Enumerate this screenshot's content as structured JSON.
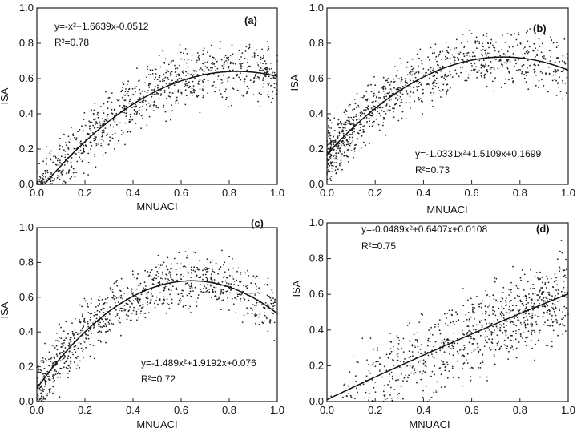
{
  "chart_data": [
    {
      "id": "a",
      "type": "scatter",
      "panel_label": "(a)",
      "xlabel": "MNUACI",
      "ylabel": "ISA",
      "xlim": [
        0,
        1
      ],
      "ylim": [
        0,
        1
      ],
      "xticks": [
        "0.0",
        "0.2",
        "0.4",
        "0.6",
        "0.8",
        "1.0"
      ],
      "yticks": [
        "0.0",
        "0.2",
        "0.4",
        "0.6",
        "0.8",
        "1.0"
      ],
      "equation": "y=-x²+1.6639x-0.0512",
      "r2": "R²=0.78",
      "fit": {
        "a": -1.0,
        "b": 1.6639,
        "c": -0.0512
      },
      "scatter": {
        "count": 900,
        "spread": 0.11,
        "xskew": 1.0,
        "seed": 11
      }
    },
    {
      "id": "b",
      "type": "scatter",
      "panel_label": "(b)",
      "xlabel": "MNUACI",
      "ylabel": "ISA",
      "xlim": [
        0,
        1
      ],
      "ylim": [
        0,
        1
      ],
      "xticks": [
        "0.0",
        "0.2",
        "0.4",
        "0.6",
        "0.8",
        "1.0"
      ],
      "yticks": [
        "0.0",
        "0.2",
        "0.4",
        "0.6",
        "0.8",
        "1.0"
      ],
      "equation": "y=-1.0331x²+1.5109x+0.1699",
      "r2": "R²=0.73",
      "fit": {
        "a": -1.0331,
        "b": 1.5109,
        "c": 0.1699
      },
      "scatter": {
        "count": 1000,
        "spread": 0.11,
        "xskew": 1.6,
        "seed": 23
      }
    },
    {
      "id": "c",
      "type": "scatter",
      "panel_label": "(c)",
      "xlabel": "MNUACI",
      "ylabel": "ISA",
      "xlim": [
        0,
        1
      ],
      "ylim": [
        0,
        1
      ],
      "xticks": [
        "0.0",
        "0.2",
        "0.4",
        "0.6",
        "0.8",
        "1.0"
      ],
      "yticks": [
        "0.0",
        "0.2",
        "0.4",
        "0.6",
        "0.8",
        "1.0"
      ],
      "equation": "y=-1.489x²+1.9192x+0.076",
      "r2": "R²=0.72",
      "fit": {
        "a": -1.489,
        "b": 1.9192,
        "c": 0.076
      },
      "scatter": {
        "count": 950,
        "spread": 0.11,
        "xskew": 1.3,
        "seed": 37
      }
    },
    {
      "id": "d",
      "type": "scatter",
      "panel_label": "(d)",
      "xlabel": "MNUACI",
      "ylabel": "ISA",
      "xlim": [
        0,
        1
      ],
      "ylim": [
        0,
        1
      ],
      "xticks": [
        "0.0",
        "0.2",
        "0.4",
        "0.6",
        "0.8",
        "1.0"
      ],
      "yticks": [
        "0.0",
        "0.2",
        "0.4",
        "0.6",
        "0.8",
        "1.0"
      ],
      "equation": "y=-0.0489x²+0.6407x+0.0108",
      "r2": "R²=0.75",
      "fit": {
        "a": -0.0489,
        "b": 0.6407,
        "c": 0.0108
      },
      "scatter": {
        "count": 850,
        "spread": 0.16,
        "xskew": 0.55,
        "seed": 53
      }
    }
  ]
}
